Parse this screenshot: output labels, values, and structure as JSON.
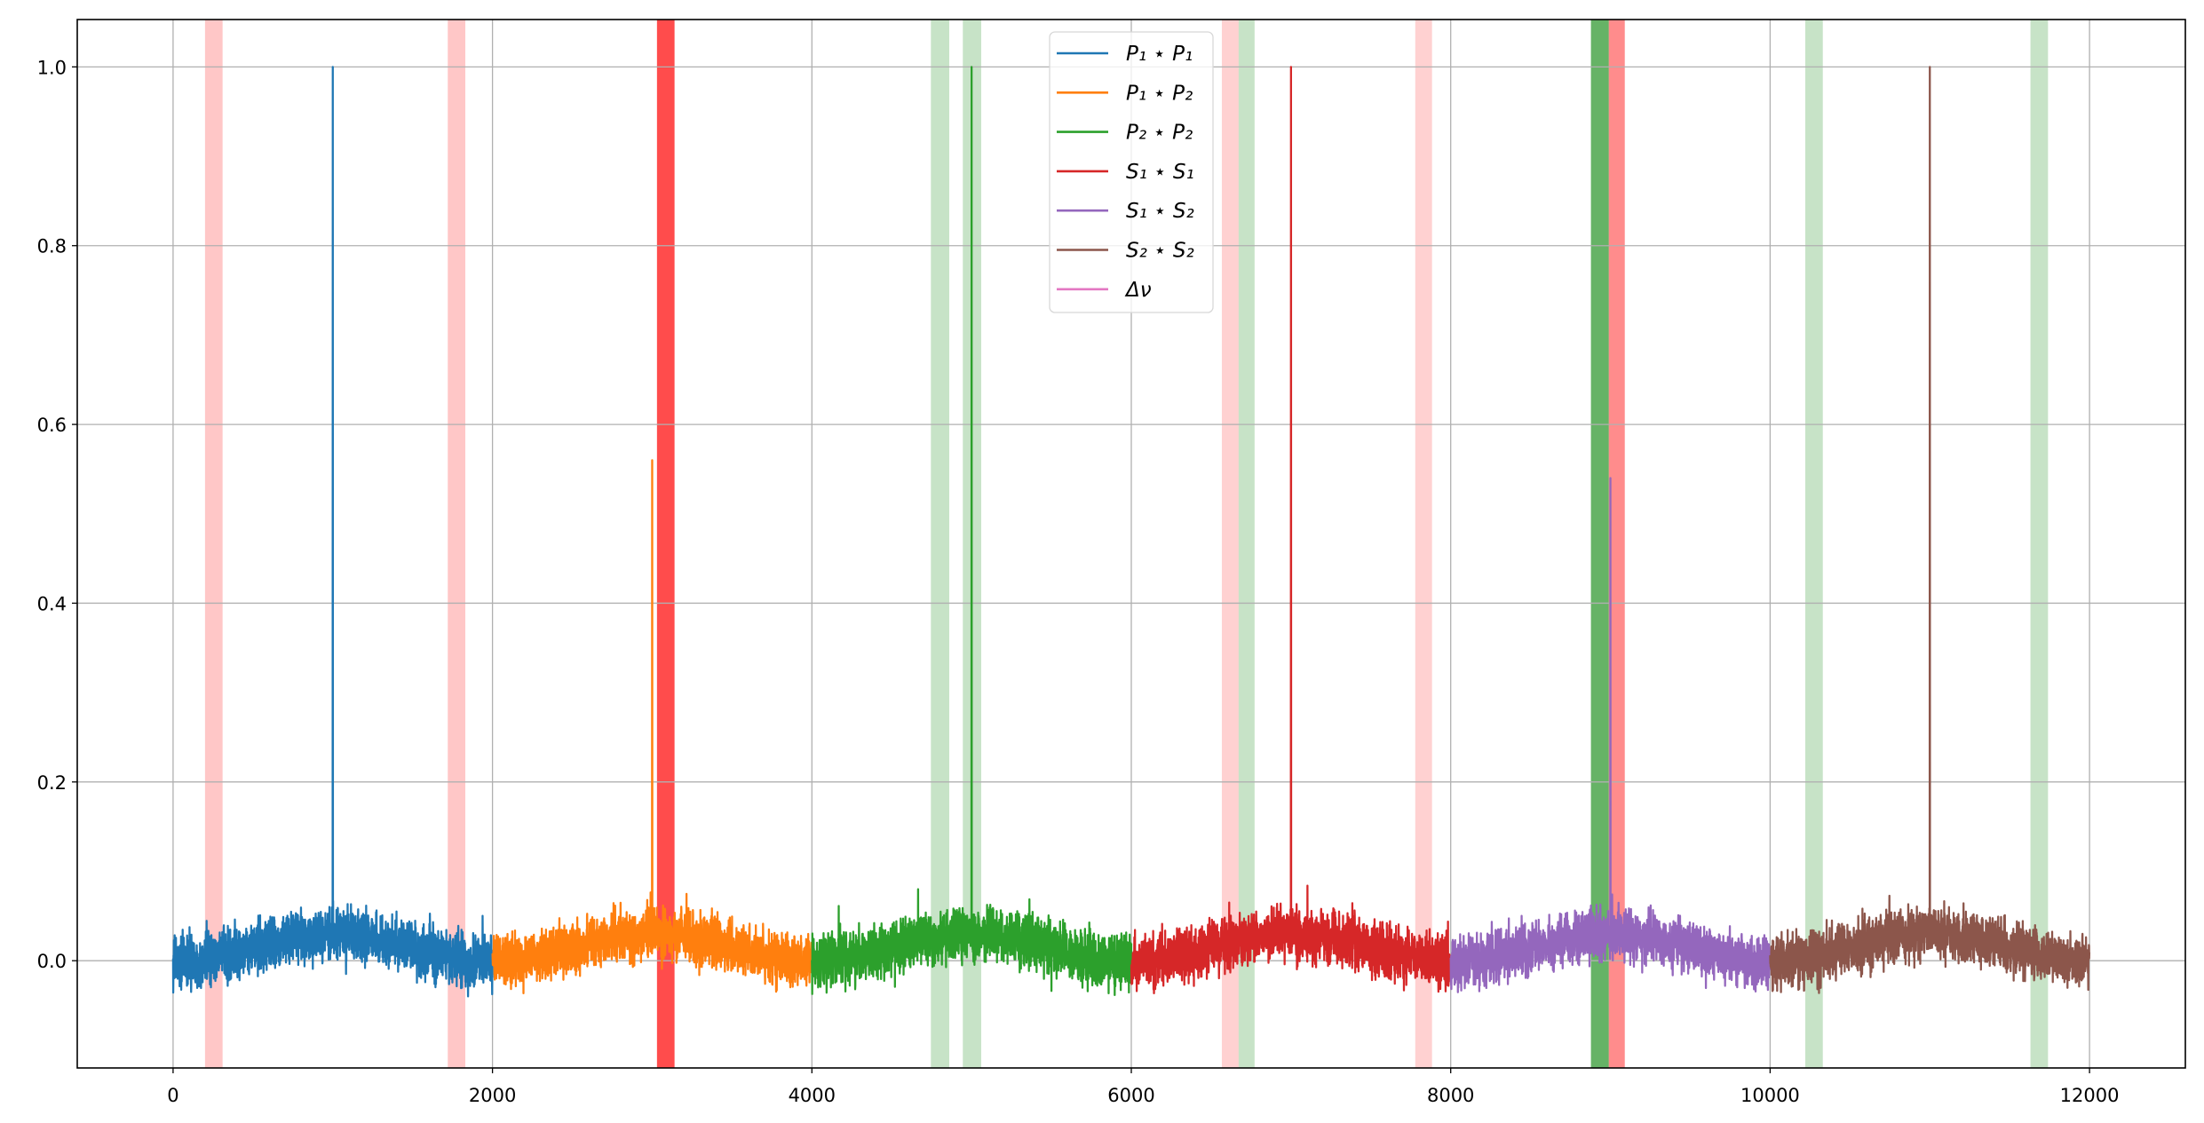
{
  "chart_data": {
    "type": "line",
    "title": "",
    "xlabel": "",
    "ylabel": "",
    "xlim": [
      -600,
      12600
    ],
    "ylim": [
      -0.12,
      1.053
    ],
    "grid": true,
    "x_ticks": [
      0,
      2000,
      4000,
      6000,
      8000,
      10000,
      12000
    ],
    "x_tick_labels": [
      "0",
      "2000",
      "4000",
      "6000",
      "8000",
      "10000",
      "12000"
    ],
    "y_ticks": [
      0.0,
      0.2,
      0.4,
      0.6,
      0.8,
      1.0
    ],
    "y_tick_labels": [
      "0.0",
      "0.2",
      "0.4",
      "0.6",
      "0.8",
      "1.0"
    ],
    "legend_position": "upper-center",
    "series": [
      {
        "name": "P₁ ⋆ P₁",
        "color": "#1f77b4",
        "x_range": [
          0,
          2000
        ],
        "spike": {
          "x": 1000,
          "y": 1.0
        }
      },
      {
        "name": "P₁ ⋆ P₂",
        "color": "#ff7f0e",
        "x_range": [
          2000,
          4000
        ],
        "spike": {
          "x": 3000,
          "y": 0.56
        }
      },
      {
        "name": "P₂ ⋆ P₂",
        "color": "#2ca02c",
        "x_range": [
          4000,
          6000
        ],
        "spike": {
          "x": 5000,
          "y": 1.0
        }
      },
      {
        "name": "S₁ ⋆ S₁",
        "color": "#d62728",
        "x_range": [
          6000,
          8000
        ],
        "spike": {
          "x": 7000,
          "y": 1.0
        }
      },
      {
        "name": "S₁ ⋆ S₂",
        "color": "#9467bd",
        "x_range": [
          8000,
          10000
        ],
        "spike": {
          "x": 9000,
          "y": 0.54
        }
      },
      {
        "name": "S₂ ⋆ S₂",
        "color": "#8c564b",
        "x_range": [
          10000,
          12000
        ],
        "spike": {
          "x": 11000,
          "y": 1.0
        }
      },
      {
        "name": "Δν",
        "color": "#e377c2"
      }
    ],
    "shaded_bands": [
      {
        "x0": 200,
        "x1": 310,
        "color": "#ff0000",
        "alpha": 0.22
      },
      {
        "x0": 1720,
        "x1": 1830,
        "color": "#ff0000",
        "alpha": 0.22
      },
      {
        "x0": 3030,
        "x1": 3140,
        "color": "#ff0000",
        "alpha": 0.7
      },
      {
        "x0": 4745,
        "x1": 4860,
        "color": "#008000",
        "alpha": 0.22
      },
      {
        "x0": 4945,
        "x1": 5060,
        "color": "#008000",
        "alpha": 0.22
      },
      {
        "x0": 6567,
        "x1": 6672,
        "color": "#ff0000",
        "alpha": 0.18
      },
      {
        "x0": 6672,
        "x1": 6772,
        "color": "#008000",
        "alpha": 0.22
      },
      {
        "x0": 7778,
        "x1": 7883,
        "color": "#ff0000",
        "alpha": 0.18
      },
      {
        "x0": 8878,
        "x1": 8990,
        "color": "#008000",
        "alpha": 0.6
      },
      {
        "x0": 8990,
        "x1": 9090,
        "color": "#ff0000",
        "alpha": 0.45
      },
      {
        "x0": 10220,
        "x1": 10330,
        "color": "#008000",
        "alpha": 0.22
      },
      {
        "x0": 11630,
        "x1": 11740,
        "color": "#008000",
        "alpha": 0.22
      }
    ]
  }
}
